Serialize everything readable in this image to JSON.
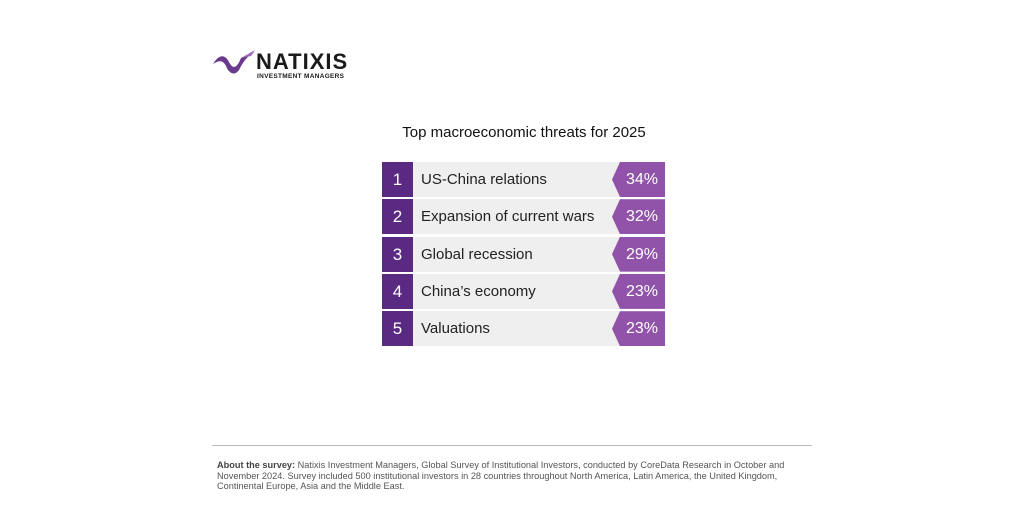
{
  "header": {
    "logo_name": "NATIXIS",
    "logo_sub": "INVESTMENT MANAGERS"
  },
  "title": "Top macroeconomic threats for 2025",
  "items": [
    {
      "rank": "1",
      "label": "US-China relations",
      "value": "34%"
    },
    {
      "rank": "2",
      "label": "Expansion of current wars",
      "value": "32%"
    },
    {
      "rank": "3",
      "label": "Global recession",
      "value": "29%"
    },
    {
      "rank": "4",
      "label": "China’s economy",
      "value": "23%"
    },
    {
      "rank": "5",
      "label": "Valuations",
      "value": "23%"
    }
  ],
  "footer": {
    "lead": "About the survey:",
    "text": "Natixis Investment Managers, Global Survey of Institutional Investors, conducted by CoreData Research in October and November 2024. Survey included 500 institutional investors in 28 countries throughout North America, Latin America, the United Kingdom, Continental Europe, Asia and the Middle East."
  }
}
